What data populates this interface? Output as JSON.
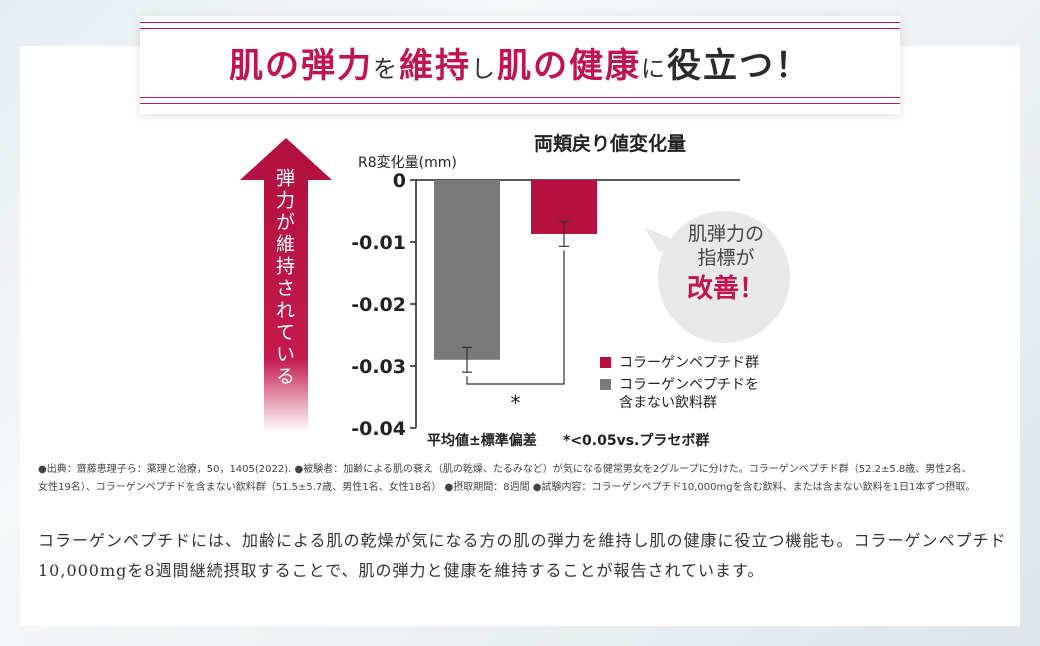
{
  "banner": {
    "parts": [
      {
        "text": "肌の弾力",
        "style": "tp"
      },
      {
        "text": "を",
        "style": "ts"
      },
      {
        "text": "維持",
        "style": "tp"
      },
      {
        "text": "し",
        "style": "ts"
      },
      {
        "text": "肌の健康",
        "style": "tp"
      },
      {
        "text": "に",
        "style": "ts"
      },
      {
        "text": "役立つ！",
        "style": "tk"
      }
    ]
  },
  "arrow_label": "弾力が維持されている",
  "bubble": {
    "line1": "肌弾力の",
    "line2": "指標が",
    "strong": "改善！"
  },
  "chart_data": {
    "type": "bar",
    "title": "両頬戻り値変化量",
    "ylabel": "R8変化量(mm)",
    "ylim": [
      -0.04,
      0
    ],
    "yticks": [
      "0",
      "-0.01",
      "-0.02",
      "-0.03",
      "-0.04"
    ],
    "ytick_values": [
      0,
      -0.01,
      -0.02,
      -0.03,
      -0.04
    ],
    "series": [
      {
        "name": "コラーゲンペプチドを含まない飲料群",
        "value": -0.029,
        "error": 0.002,
        "color": "#7a7a7a"
      },
      {
        "name": "コラーゲンペプチド群",
        "value": -0.0087,
        "error": 0.002,
        "color": "#b5103f"
      }
    ],
    "legend": [
      {
        "label": "コラーゲンペプチド群",
        "color": "#b5103f"
      },
      {
        "label_line1": "コラーゲンペプチドを",
        "label_line2": "含まない飲料群",
        "color": "#7a7a7a"
      }
    ],
    "significance": "*",
    "note_left": "平均値±標準偏差",
    "note_right": "*<0.05vs.プラセボ群"
  },
  "source_text": "●出典：齋藤恵理子ら：薬理と治療，50，1405(2022). ●被験者：加齢による肌の衰え（肌の乾燥、たるみなど）が気になる健常男女を2グループに分けた。コラーゲンペプチド群（52.2±5.8歳、男性2名、女性19名）、コラーゲンペプチドを含まない飲料群（51.5±5.7歳、男性1名、女性18名） ●摂取期間：8週間 ●試験内容：コラーゲンペプチド10,000mgを含む飲料、または含まない飲料を1日1本ずつ摂取。",
  "body_text": "コラーゲンペプチドには、加齢による肌の乾燥が気になる方の肌の弾力を維持し肌の健康に役立つ機能も。コラーゲンペプチド10,000mgを8週間継続摂取することで、肌の弾力と健康を維持することが報告されています。"
}
